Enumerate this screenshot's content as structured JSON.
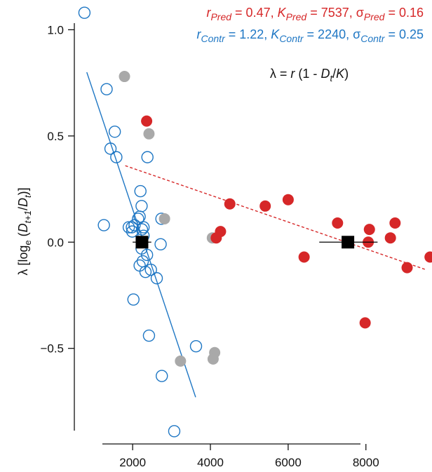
{
  "chart_data": {
    "type": "scatter",
    "title": "",
    "xlabel": "",
    "ylabel": "λ [log_e (D_{t+1}/D_t)]",
    "xlim": [
      500,
      9700
    ],
    "ylim": [
      -0.95,
      1.14
    ],
    "x_ticks": [
      2000,
      4000,
      6000,
      8000
    ],
    "y_ticks": [
      1.0,
      0.5,
      0.0,
      -0.5
    ],
    "y_tick_labels": [
      "1.0",
      "0.5",
      "0.0",
      "−0.5"
    ],
    "grid": false,
    "legend": "none",
    "annotations": {
      "pred": {
        "text": "r_Pred = 0.47, K_Pred = 7537, σ_Pred = 0.16",
        "r": "0.47",
        "K": "7537",
        "sigma": "0.16",
        "r_label": "r",
        "K_label": "K",
        "sigma_label": "σ",
        "sub": "Pred"
      },
      "contr": {
        "text": "r_Contr = 1.22, K_Contr = 2240, σ_Contr = 0.25",
        "r": "1.22",
        "K": "2240",
        "sigma": "0.25",
        "r_label": "r",
        "K_label": "K",
        "sigma_label": "σ",
        "sub": "Contr"
      },
      "equation": "λ = r (1 - D_t/K)"
    },
    "colors": {
      "pred": "#d62728",
      "contr": "#1f77c4",
      "gray": "#a9a9a9",
      "marker": "#000000"
    },
    "series": [
      {
        "key": "contr",
        "marker": "open-circle",
        "points": [
          [
            760,
            1.08
          ],
          [
            1330,
            0.72
          ],
          [
            1540,
            0.52
          ],
          [
            1430,
            0.44
          ],
          [
            1580,
            0.4
          ],
          [
            2380,
            0.4
          ],
          [
            2200,
            0.24
          ],
          [
            2230,
            0.17
          ],
          [
            2180,
            0.12
          ],
          [
            2050,
            0.08
          ],
          [
            2140,
            0.11
          ],
          [
            1980,
            0.07
          ],
          [
            1990,
            0.05
          ],
          [
            1900,
            0.07
          ],
          [
            2240,
            0.06
          ],
          [
            2280,
            0.07
          ],
          [
            2280,
            0.03
          ],
          [
            2230,
            -0.03
          ],
          [
            2370,
            -0.06
          ],
          [
            2260,
            -0.09
          ],
          [
            2180,
            -0.11
          ],
          [
            2330,
            -0.14
          ],
          [
            2470,
            -0.13
          ],
          [
            2720,
            -0.01
          ],
          [
            2620,
            -0.17
          ],
          [
            1260,
            0.08
          ],
          [
            2740,
            0.11
          ],
          [
            2020,
            -0.27
          ],
          [
            2420,
            -0.44
          ],
          [
            2750,
            -0.63
          ],
          [
            3630,
            -0.49
          ],
          [
            3070,
            -0.89
          ]
        ]
      },
      {
        "key": "gray",
        "marker": "filled-circle",
        "points": [
          [
            1790,
            0.78
          ],
          [
            2420,
            0.51
          ],
          [
            2820,
            0.11
          ],
          [
            4050,
            0.02
          ],
          [
            3230,
            -0.56
          ],
          [
            4110,
            -0.52
          ],
          [
            4070,
            -0.55
          ]
        ]
      },
      {
        "key": "pred",
        "marker": "filled-circle",
        "points": [
          [
            2360,
            0.57
          ],
          [
            4500,
            0.18
          ],
          [
            5410,
            0.17
          ],
          [
            6000,
            0.2
          ],
          [
            4260,
            0.05
          ],
          [
            4150,
            0.02
          ],
          [
            7270,
            0.09
          ],
          [
            8090,
            0.06
          ],
          [
            8060,
            0.0
          ],
          [
            8750,
            0.09
          ],
          [
            8630,
            0.02
          ],
          [
            6410,
            -0.07
          ],
          [
            9060,
            -0.12
          ],
          [
            9650,
            -0.07
          ],
          [
            7980,
            -0.38
          ]
        ]
      }
    ],
    "fits": [
      {
        "key": "contr",
        "style": "solid",
        "x": [
          820,
          3620
        ],
        "y": [
          0.8,
          -0.73
        ]
      },
      {
        "key": "pred",
        "style": "dashed",
        "x": [
          1810,
          9550
        ],
        "y": [
          0.36,
          -0.13
        ]
      }
    ],
    "equilibria": [
      {
        "key": "contr",
        "x": 2240,
        "y": 0.0,
        "xerr": [
          2000,
          2480
        ]
      },
      {
        "key": "pred",
        "x": 7537,
        "y": 0.0,
        "xerr": [
          6800,
          8300
        ]
      }
    ]
  }
}
